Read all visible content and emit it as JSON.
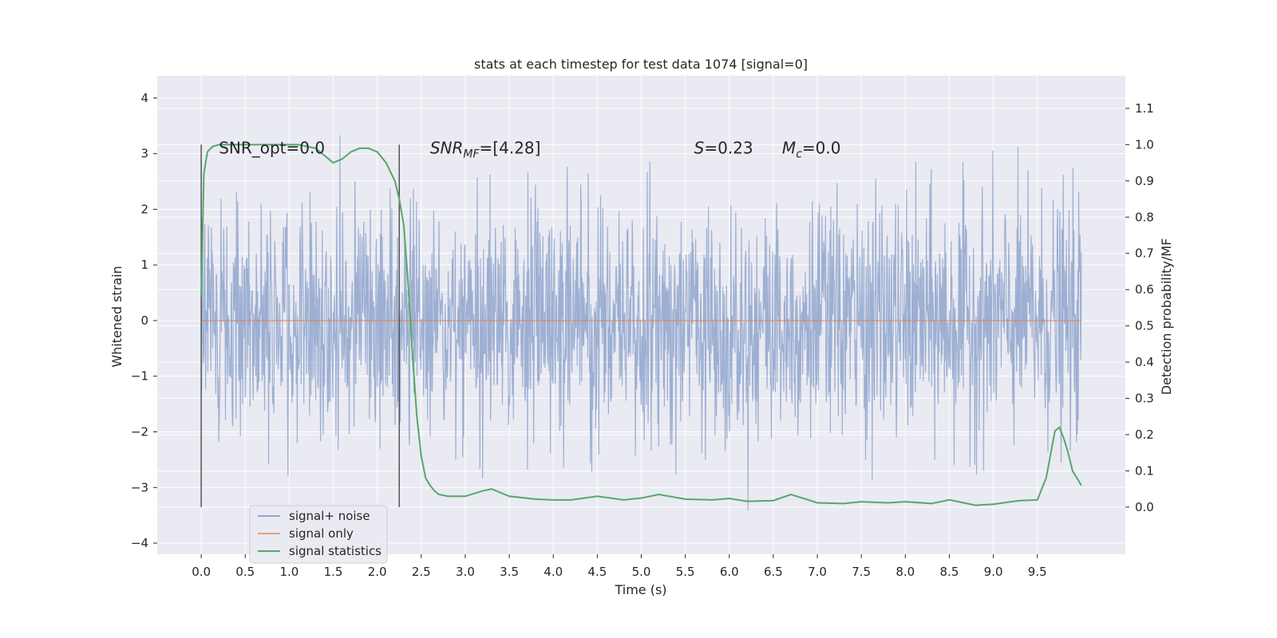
{
  "chart_data": {
    "type": "line",
    "title": "stats at each timestep for test data 1074 [signal=0]",
    "xlabel": "Time (s)",
    "ylabel": "Whitened strain",
    "y2label": "Detection probability/MF",
    "xlim": [
      -0.5,
      10.5
    ],
    "ylim": [
      -4.2,
      4.4
    ],
    "y2lim": [
      -0.13,
      1.19
    ],
    "xticks": [
      "0.0",
      "0.5",
      "1.0",
      "1.5",
      "2.0",
      "2.5",
      "3.0",
      "3.5",
      "4.0",
      "4.5",
      "5.0",
      "5.5",
      "6.0",
      "6.5",
      "7.0",
      "7.5",
      "8.0",
      "8.5",
      "9.0",
      "9.5"
    ],
    "yticks": [
      "4",
      "3",
      "2",
      "1",
      "0",
      "−1",
      "−2",
      "−3",
      "−4"
    ],
    "y2ticks": [
      "1.1",
      "1.0",
      "0.9",
      "0.8",
      "0.7",
      "0.6",
      "0.5",
      "0.4",
      "0.3",
      "0.2",
      "0.1",
      "0.0"
    ],
    "grid": true,
    "legend_position": "lower-left",
    "colors": {
      "background": "#eaeaf2",
      "grid": "#ffffff",
      "noise": "#8fa4cc",
      "signal_only": "#dd8452",
      "statistics": "#55a868",
      "vline": "#555555"
    },
    "series": [
      {
        "name": "signal+ noise",
        "description_points": "dense noise ~N(0,1) over 0.0 to 10.0 s",
        "x_range": [
          0.0,
          10.0
        ]
      },
      {
        "name": "signal only",
        "x": [
          0.0,
          10.0
        ],
        "y": [
          0.0,
          0.0
        ]
      },
      {
        "name": "signal statistics",
        "axis": "right",
        "x": [
          0.0,
          0.03,
          0.07,
          0.13,
          0.2,
          0.3,
          0.5,
          0.8,
          1.1,
          1.3,
          1.4,
          1.5,
          1.6,
          1.7,
          1.8,
          1.9,
          2.0,
          2.1,
          2.2,
          2.25,
          2.3,
          2.35,
          2.4,
          2.45,
          2.5,
          2.55,
          2.6,
          2.65,
          2.7,
          2.8,
          3.0,
          3.2,
          3.3,
          3.5,
          3.8,
          4.0,
          4.2,
          4.5,
          4.8,
          5.0,
          5.2,
          5.5,
          5.8,
          6.0,
          6.2,
          6.5,
          6.7,
          7.0,
          7.3,
          7.5,
          7.8,
          8.0,
          8.3,
          8.5,
          8.8,
          9.0,
          9.3,
          9.5,
          9.6,
          9.7,
          9.75,
          9.8,
          9.85,
          9.9,
          10.0
        ],
        "y": [
          0.58,
          0.92,
          0.98,
          0.995,
          1.0,
          1.0,
          1.0,
          1.0,
          1.0,
          0.99,
          0.97,
          0.95,
          0.96,
          0.98,
          0.99,
          0.99,
          0.98,
          0.95,
          0.9,
          0.85,
          0.78,
          0.62,
          0.42,
          0.25,
          0.14,
          0.08,
          0.06,
          0.045,
          0.035,
          0.03,
          0.03,
          0.045,
          0.05,
          0.03,
          0.022,
          0.02,
          0.02,
          0.03,
          0.02,
          0.025,
          0.035,
          0.022,
          0.02,
          0.024,
          0.016,
          0.018,
          0.035,
          0.012,
          0.01,
          0.015,
          0.012,
          0.015,
          0.01,
          0.02,
          0.005,
          0.008,
          0.018,
          0.02,
          0.08,
          0.21,
          0.22,
          0.19,
          0.15,
          0.1,
          0.06
        ]
      }
    ],
    "vlines": [
      0.0,
      2.25
    ],
    "annotations": [
      {
        "text": "SNR_opt=0.0",
        "x": 0.2,
        "y": 3.1
      },
      {
        "text_main": "SNR",
        "text_sub": "MF",
        "text_rest": "=[4.28]",
        "x": 2.6,
        "y": 3.1
      },
      {
        "text_main": "S",
        "text_rest": "=0.23",
        "x": 5.6,
        "y": 3.1
      },
      {
        "text_main": "M",
        "text_sub": "c",
        "text_rest": "=0.0",
        "x": 6.6,
        "y": 3.1
      }
    ]
  }
}
